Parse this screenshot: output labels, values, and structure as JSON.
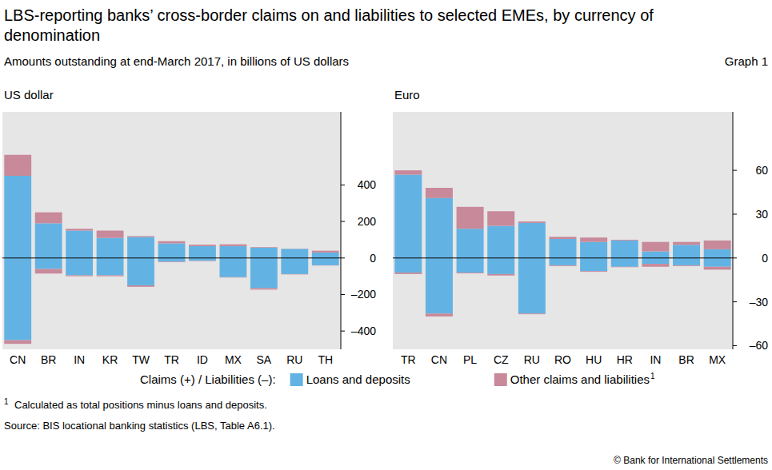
{
  "title": "LBS-reporting banks’ cross-border claims on and liabilities to selected EMEs, by currency of denomination",
  "subtitle": "Amounts outstanding at end-March 2017, in billions of US dollars",
  "graph_label": "Graph 1",
  "legend_title": "Claims (+) / Liabilities (–):",
  "footnote": {
    "marker": "1",
    "text": "Calculated as total positions minus loans and deposits."
  },
  "source": "Source: BIS locational banking statistics (LBS, Table A6.1).",
  "copyright": "© Bank for International Settlements",
  "chart_data": [
    {
      "type": "bar",
      "title": "US dollar",
      "stacked": true,
      "grid": false,
      "legend": "bottom",
      "categories": [
        "CN",
        "BR",
        "IN",
        "KR",
        "TW",
        "TR",
        "ID",
        "MX",
        "SA",
        "RU",
        "TH"
      ],
      "series": [
        {
          "name": "Loans and deposits",
          "color": "#62b3e4",
          "values": [
            450,
            190,
            150,
            110,
            115,
            80,
            65,
            65,
            57,
            50,
            30
          ]
        },
        {
          "name": "Other claims and liabilities",
          "color": "#c8899a",
          "values": [
            115,
            60,
            10,
            40,
            5,
            12,
            8,
            10,
            3,
            1,
            10
          ]
        },
        {
          "name": "Loans and deposits",
          "color": "#62b3e4",
          "values": [
            -450,
            -60,
            -95,
            -95,
            -150,
            -20,
            -15,
            -105,
            -165,
            -88,
            -40
          ]
        },
        {
          "name": "Other claims and liabilities",
          "color": "#c8899a",
          "values": [
            -20,
            -25,
            -5,
            -5,
            -8,
            -3,
            -2,
            -2,
            -8,
            -2,
            -1
          ]
        }
      ],
      "ylim": [
        -500,
        800
      ],
      "yticks": [
        {
          "value": -400,
          "label": "–400"
        },
        {
          "value": -200,
          "label": "–200"
        },
        0,
        200,
        400
      ]
    },
    {
      "type": "bar",
      "title": "Euro",
      "stacked": true,
      "grid": false,
      "categories": [
        "TR",
        "CN",
        "PL",
        "CZ",
        "RU",
        "RO",
        "HU",
        "HR",
        "IN",
        "BR",
        "MX"
      ],
      "series": [
        {
          "name": "Loans and deposits",
          "color": "#62b3e4",
          "values": [
            57,
            41,
            20,
            22,
            24,
            13,
            11,
            12,
            4.5,
            9,
            6
          ]
        },
        {
          "name": "Other claims and liabilities",
          "color": "#c8899a",
          "values": [
            3,
            7,
            15,
            10,
            1,
            1.5,
            3,
            0.5,
            6.5,
            2,
            6
          ]
        },
        {
          "name": "Loans and deposits",
          "color": "#62b3e4",
          "values": [
            -10,
            -38,
            -10,
            -11,
            -38,
            -5,
            -9,
            -6,
            -4,
            -5,
            -6
          ]
        },
        {
          "name": "Other claims and liabilities",
          "color": "#c8899a",
          "values": [
            -1,
            -2,
            -0.5,
            -1,
            -0.5,
            -0.5,
            -0.5,
            -0.3,
            -2,
            -0.5,
            -2
          ]
        }
      ],
      "ylim": [
        -62.5,
        100
      ],
      "yticks": [
        {
          "value": -60,
          "label": "–60"
        },
        {
          "value": -30,
          "label": "–30"
        },
        0,
        30,
        60
      ]
    }
  ]
}
